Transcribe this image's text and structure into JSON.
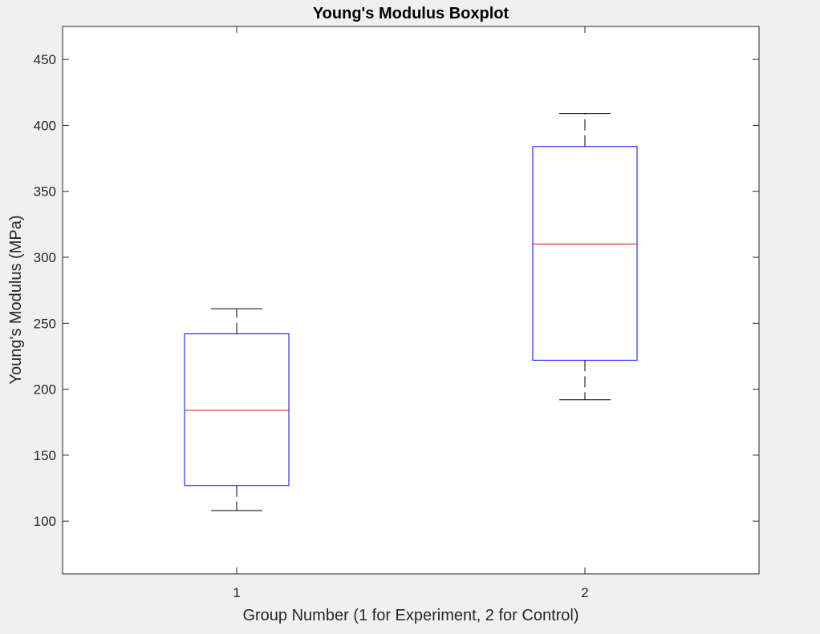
{
  "chart_data": {
    "type": "boxplot",
    "title": "Young's Modulus Boxplot",
    "xlabel": "Group Number (1 for Experiment, 2 for Control)",
    "ylabel": "Young's Modulus (MPa)",
    "ylim": [
      60,
      475
    ],
    "yticks": [
      "100",
      "150",
      "200",
      "250",
      "300",
      "350",
      "400",
      "450"
    ],
    "xlim": [
      0.5,
      2.5
    ],
    "categories": [
      "1",
      "2"
    ],
    "boxes": [
      {
        "category": "1",
        "whisker_low": 108,
        "q1": 127,
        "median": 184,
        "q3": 242,
        "whisker_high": 261
      },
      {
        "category": "2",
        "whisker_low": 192,
        "q1": 222,
        "median": 310,
        "q3": 384,
        "whisker_high": 409
      }
    ],
    "grid": false,
    "colors": {
      "box": "#0000ff",
      "median": "#ff0000",
      "whisker": "#000000",
      "axes": "#262626",
      "plot_bg": "#ffffff",
      "figure_bg": "#f0f0f0"
    }
  }
}
